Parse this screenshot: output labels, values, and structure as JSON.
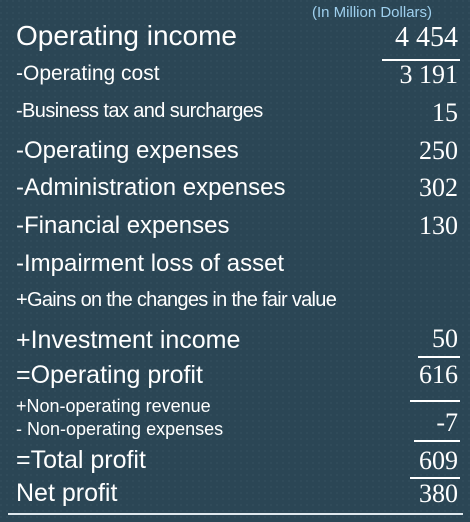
{
  "units_note": "(In Million Dollars)",
  "rows": [
    {
      "label": "Operating income",
      "value": "4 454"
    },
    {
      "label": "-Operating cost",
      "value": "3 191"
    },
    {
      "label": "-Business tax and surcharges",
      "value": "15"
    },
    {
      "label": "-Operating expenses",
      "value": "250"
    },
    {
      "label": "-Administration expenses",
      "value": "302"
    },
    {
      "label": "-Financial expenses",
      "value": "130"
    },
    {
      "label": "-Impairment loss of asset",
      "value": ""
    },
    {
      "label": "+Gains on the changes in the fair value",
      "value": ""
    },
    {
      "label": "+Investment income",
      "value": "50"
    },
    {
      "label": "=Operating profit",
      "value": "616"
    },
    {
      "label": "+Non-operating revenue",
      "value": ""
    },
    {
      "label": "- Non-operating expenses",
      "value": "-7"
    },
    {
      "label": "=Total profit",
      "value": "609"
    },
    {
      "label": "Net profit",
      "value": "380"
    }
  ],
  "colors": {
    "board": "#2b4655",
    "text": "#ffffff",
    "units_note": "#9fd0ee"
  }
}
